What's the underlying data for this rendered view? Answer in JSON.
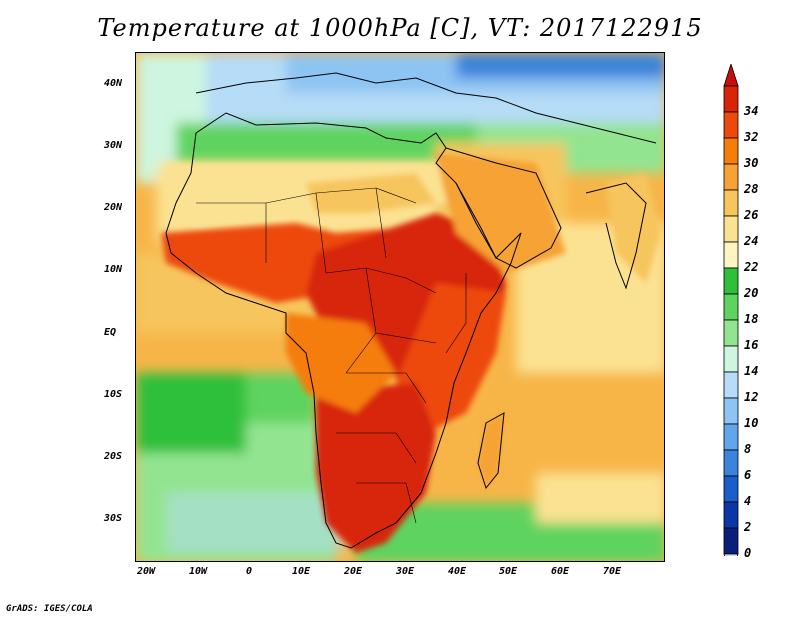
{
  "title": "Temperature at 1000hPa [C], VT: 2017122915",
  "credit": "GrADS: IGES/COLA",
  "map": {
    "projection": "lat-lon",
    "region": "Africa",
    "lat_labels": [
      "40N",
      "30N",
      "20N",
      "10N",
      "EQ",
      "10S",
      "20S",
      "30S"
    ],
    "lon_labels": [
      "20W",
      "10W",
      "0",
      "10E",
      "20E",
      "30E",
      "40E",
      "50E",
      "60E",
      "70E"
    ],
    "lon_range": [
      -22,
      80
    ],
    "lat_range": [
      -37,
      45
    ],
    "features": [
      "coastlines",
      "country-borders"
    ]
  },
  "colorbar": {
    "levels": [
      "34",
      "32",
      "30",
      "28",
      "26",
      "24",
      "22",
      "20",
      "18",
      "16",
      "14",
      "12",
      "10",
      "8",
      "6",
      "4",
      "2",
      "0"
    ],
    "colors": [
      "#d8250a",
      "#ed4a0a",
      "#f57d0a",
      "#f6a236",
      "#f7c55d",
      "#fbe292",
      "#fdf5c0",
      "#2fbf3a",
      "#5fd35f",
      "#93e491",
      "#cdf5df",
      "#b6dcf7",
      "#8ec4f3",
      "#62a6ea",
      "#3b84dc",
      "#1b5ec9",
      "#0a36a6",
      "#0a1f79"
    ],
    "top_triangle_color": "#c60e0a",
    "bottom_triangle_color": "#d8d8f5"
  }
}
